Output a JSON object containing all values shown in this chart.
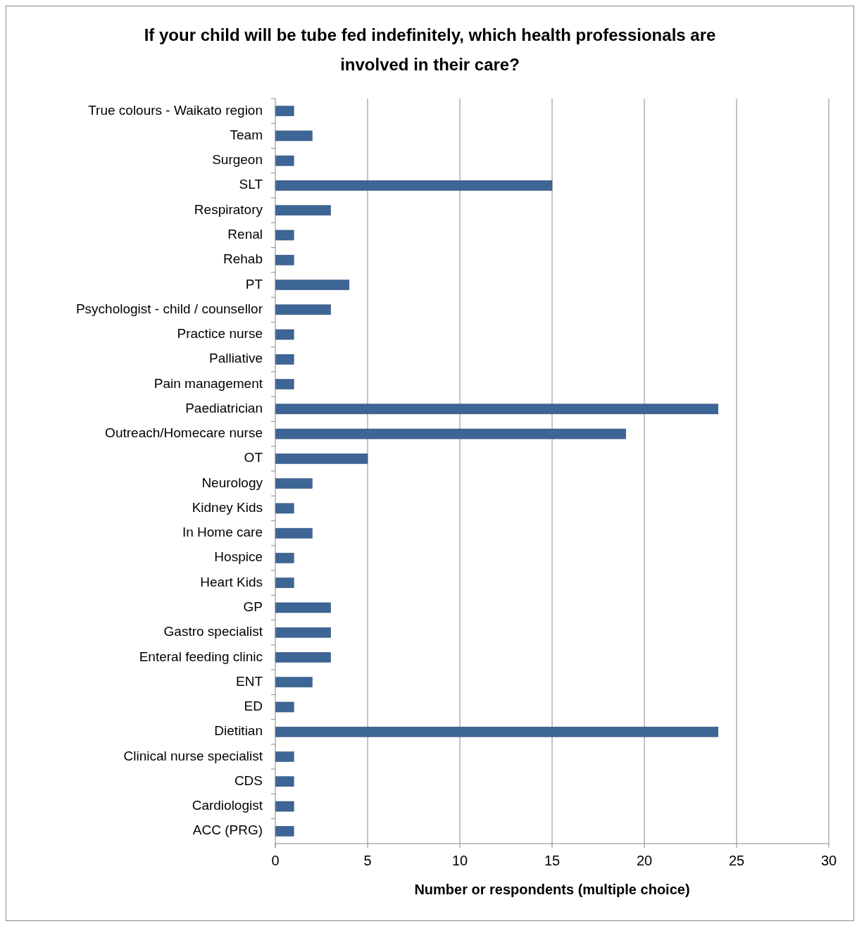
{
  "chart_data": {
    "type": "bar",
    "orientation": "horizontal",
    "title": "If your child will be tube fed indefinitely, which health professionals are involved in their care?",
    "xlabel": "Number or respondents (multiple choice)",
    "categories": [
      "True colours - Waikato region",
      "Team",
      "Surgeon",
      "SLT",
      "Respiratory",
      "Renal",
      "Rehab",
      "PT",
      "Psychologist - child / counsellor",
      "Practice nurse",
      "Palliative",
      "Pain management",
      "Paediatrician",
      "Outreach/Homecare nurse",
      "OT",
      "Neurology",
      "Kidney Kids",
      "In Home care",
      "Hospice",
      "Heart Kids",
      "GP",
      "Gastro specialist",
      "Enteral feeding clinic",
      "ENT",
      "ED",
      "Dietitian",
      "Clinical nurse specialist",
      "CDS",
      "Cardiologist",
      "ACC (PRG)"
    ],
    "values": [
      1,
      2,
      1,
      15,
      3,
      1,
      1,
      4,
      3,
      1,
      1,
      1,
      24,
      19,
      5,
      2,
      1,
      2,
      1,
      1,
      3,
      3,
      3,
      2,
      1,
      24,
      1,
      1,
      1,
      1
    ],
    "color": "#3d6596",
    "xlim": [
      0,
      30
    ],
    "xticks": [
      0,
      5,
      10,
      15,
      20,
      25,
      30
    ],
    "grid": "x"
  }
}
